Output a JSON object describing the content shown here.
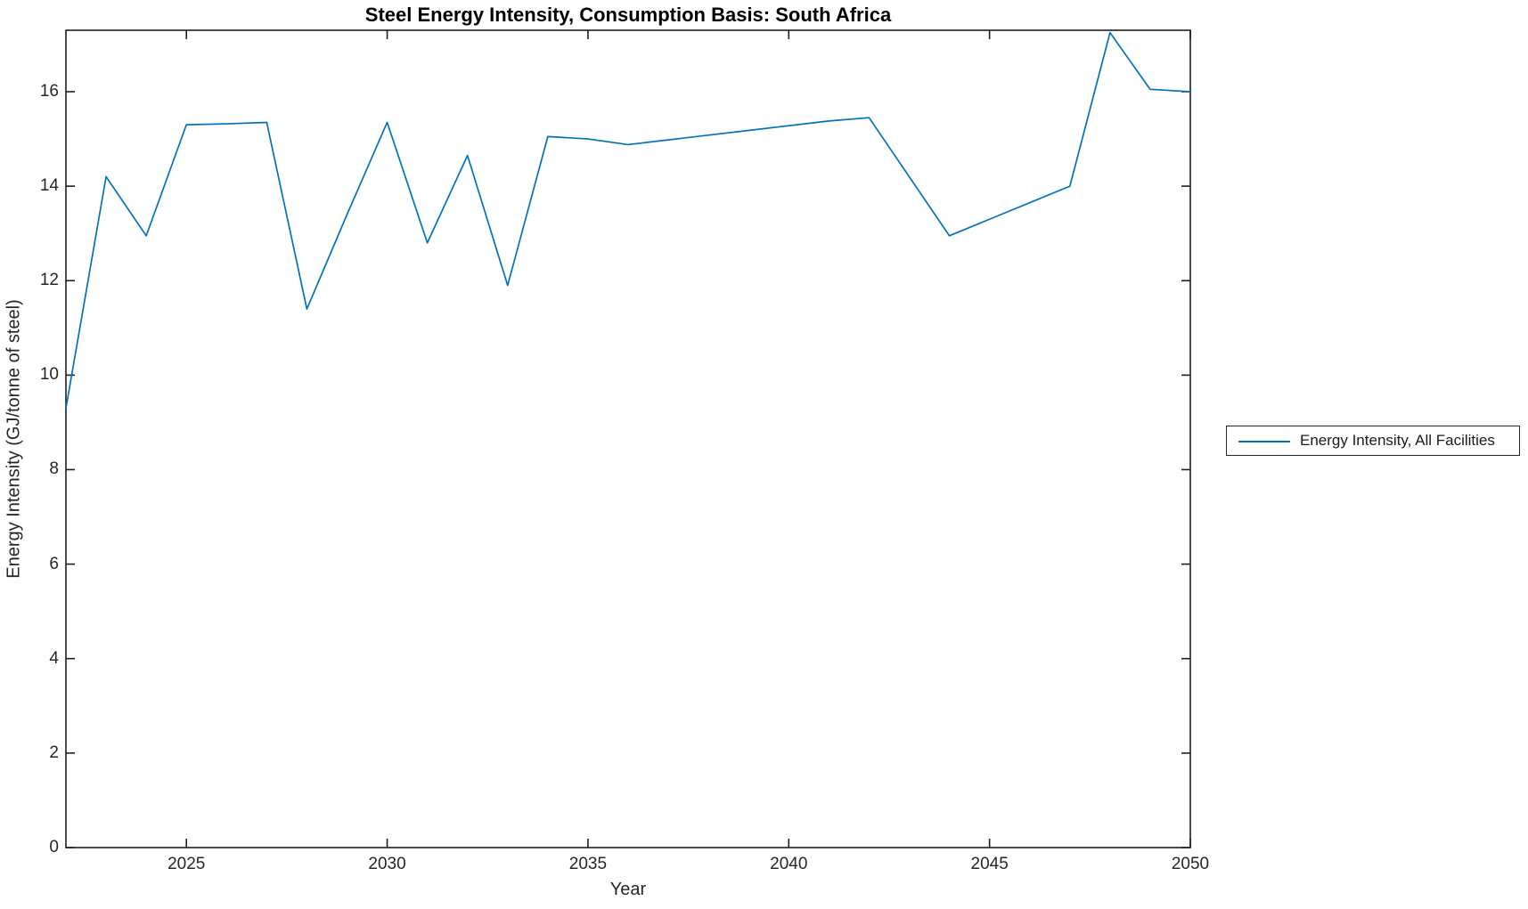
{
  "figure": {
    "background_color": "#ffffff"
  },
  "chart_data": {
    "type": "line",
    "title": "Steel Energy Intensity, Consumption Basis: South Africa",
    "xlabel": "Year",
    "ylabel": "Energy Intensity (GJ/tonne of steel)",
    "xlim": [
      2022,
      2050
    ],
    "ylim": [
      0,
      17.3
    ],
    "x_ticks": [
      2025,
      2030,
      2035,
      2040,
      2045,
      2050
    ],
    "y_ticks": [
      0,
      2,
      4,
      6,
      8,
      10,
      12,
      14,
      16
    ],
    "grid": false,
    "box": true,
    "legend_position": "outside-right",
    "line_color": "#0072BD",
    "axis_color": "#1f1f1f",
    "series": [
      {
        "name": "Energy Intensity, All Facilities",
        "x": [
          2022,
          2023,
          2024,
          2025,
          2026,
          2027,
          2028,
          2029,
          2030,
          2031,
          2032,
          2033,
          2034,
          2035,
          2036,
          2037,
          2038,
          2039,
          2040,
          2041,
          2042,
          2043,
          2044,
          2045,
          2046,
          2047,
          2048,
          2049,
          2050
        ],
        "values": [
          9.3,
          14.2,
          12.95,
          15.3,
          15.32,
          15.35,
          11.4,
          13.4,
          15.35,
          12.8,
          14.65,
          11.9,
          15.05,
          15.0,
          14.88,
          14.98,
          15.08,
          15.18,
          15.28,
          15.38,
          15.45,
          14.2,
          12.95,
          13.3,
          13.65,
          14.0,
          17.25,
          16.05,
          16.0
        ]
      }
    ]
  }
}
